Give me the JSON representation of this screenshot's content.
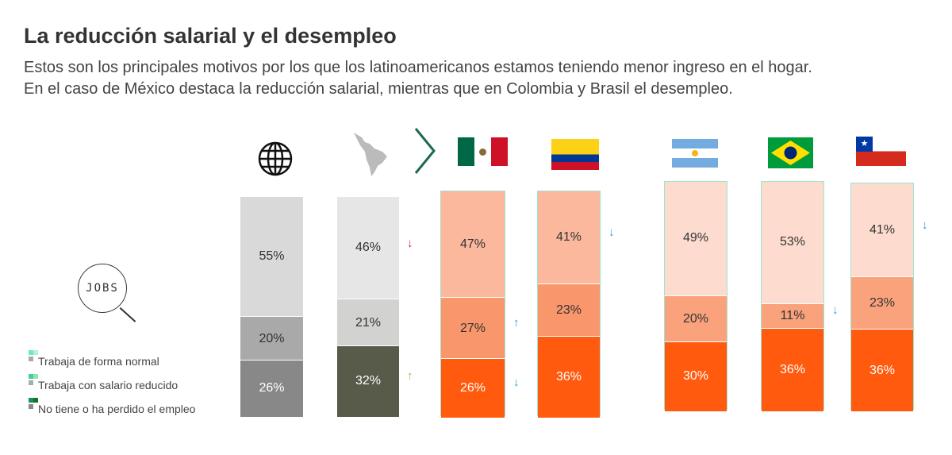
{
  "title": "La reducción salarial y el desempleo",
  "subtitle": [
    "Estos son los principales motivos por los que los latinoamericanos estamos teniendo menor ingreso en el hogar.",
    "En el caso de México destaca la reducción salarial, mientras que en Colombia y Brasil el desempleo."
  ],
  "jobs_icon_text": "JOBS",
  "chart_data": {
    "type": "bar",
    "stacked": true,
    "categories": [
      "Global",
      "Latinoamérica",
      "México",
      "Colombia",
      "Argentina",
      "Brasil",
      "Chile"
    ],
    "legend": [
      "Trabaja de forma normal",
      "Trabaja con salario reducido",
      "No tiene o ha perdido el empleo"
    ],
    "series": [
      {
        "name": "Trabaja de forma normal",
        "values": [
          55,
          46,
          47,
          41,
          49,
          53,
          41
        ],
        "labels": [
          "55%",
          "46%",
          "47%",
          "41%",
          "49%",
          "53%",
          "41%"
        ]
      },
      {
        "name": "Trabaja con salario reducido",
        "values": [
          20,
          21,
          27,
          23,
          20,
          11,
          23
        ],
        "labels": [
          "20%",
          "21%",
          "27%",
          "23%",
          "20%",
          "11%",
          "23%"
        ]
      },
      {
        "name": "No tiene o ha perdido el empleo",
        "values": [
          26,
          32,
          26,
          36,
          30,
          36,
          36
        ],
        "labels": [
          "26%",
          "32%",
          "26%",
          "36%",
          "30%",
          "36%",
          "36%"
        ]
      }
    ],
    "colors": [
      [
        "#d9d9d9",
        "#a9a9a9",
        "#888888"
      ],
      [
        "#e6e6e6",
        "#d2d2d0",
        "#585a4a"
      ],
      [
        "#fbb89d",
        "#f9966b",
        "#ff5a0e"
      ],
      [
        "#fbb89d",
        "#f9966b",
        "#ff5a0e"
      ],
      [
        "#fddccf",
        "#f9a27c",
        "#ff5a0e"
      ],
      [
        "#fddccf",
        "#f9a27c",
        "#ff5a0e"
      ],
      [
        "#fddccf",
        "#f9a27c",
        "#ff5a0e"
      ]
    ],
    "trend_arrows": [
      {
        "category": "Latinoamérica",
        "series": 0,
        "direction": "down",
        "color": "#d9293e"
      },
      {
        "category": "Latinoamérica",
        "series": 2,
        "direction": "up",
        "color": "#8dc63f"
      },
      {
        "category": "México",
        "series": 1,
        "direction": "up",
        "color": "#2a9fd6"
      },
      {
        "category": "México",
        "series": 2,
        "direction": "down",
        "color": "#2a9fd6"
      },
      {
        "category": "Colombia",
        "series": 0,
        "direction": "down",
        "color": "#2a9fd6"
      },
      {
        "category": "Brasil",
        "series": 1,
        "direction": "down",
        "color": "#2a9fd6"
      },
      {
        "category": "Chile",
        "series": 0,
        "direction": "down",
        "color": "#2a9fd6"
      }
    ]
  }
}
